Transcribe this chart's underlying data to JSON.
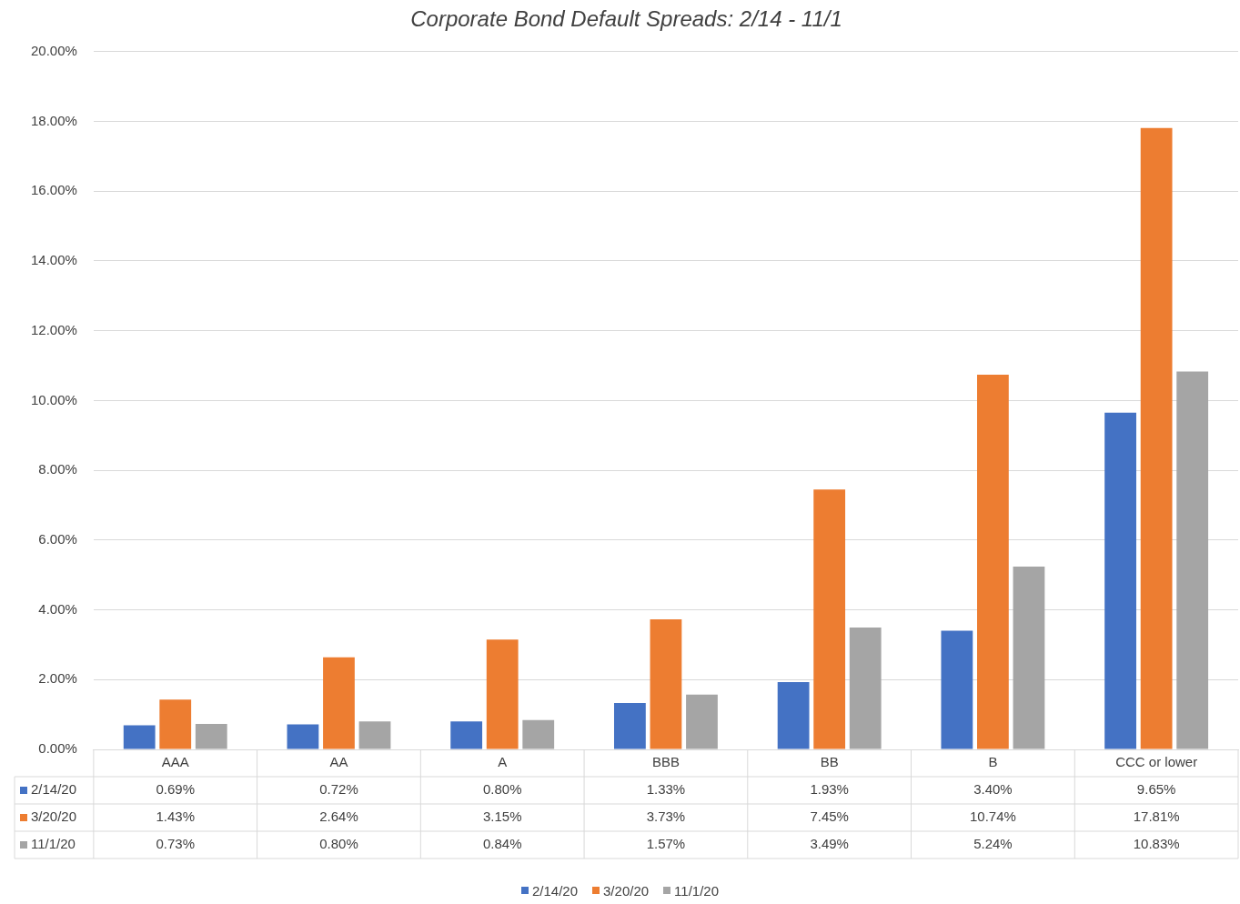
{
  "chart_data": {
    "type": "bar",
    "title": "Corporate Bond Default Spreads: 2/14 - 11/1",
    "categories": [
      "AAA",
      "AA",
      "A",
      "BBB",
      "BB",
      "B",
      "CCC or lower"
    ],
    "series": [
      {
        "name": "2/14/20",
        "color": "#4472c4",
        "values": [
          0.69,
          0.72,
          0.8,
          1.33,
          1.93,
          3.4,
          9.65
        ],
        "value_labels": [
          "0.69%",
          "0.72%",
          "0.80%",
          "1.33%",
          "1.93%",
          "3.40%",
          "9.65%"
        ]
      },
      {
        "name": "3/20/20",
        "color": "#ed7d31",
        "values": [
          1.43,
          2.64,
          3.15,
          3.73,
          7.45,
          10.74,
          17.81
        ],
        "value_labels": [
          "1.43%",
          "2.64%",
          "3.15%",
          "3.73%",
          "7.45%",
          "10.74%",
          "17.81%"
        ]
      },
      {
        "name": "11/1/20",
        "color": "#a5a5a5",
        "values": [
          0.73,
          0.8,
          0.84,
          1.57,
          3.49,
          5.24,
          10.83
        ],
        "value_labels": [
          "0.73%",
          "0.80%",
          "0.84%",
          "1.57%",
          "3.49%",
          "5.24%",
          "10.83%"
        ]
      }
    ],
    "ylim": [
      0,
      20
    ],
    "yticks": [
      {
        "value": 0,
        "label": "0.00%"
      },
      {
        "value": 2,
        "label": "2.00%"
      },
      {
        "value": 4,
        "label": "4.00%"
      },
      {
        "value": 6,
        "label": "6.00%"
      },
      {
        "value": 8,
        "label": "8.00%"
      },
      {
        "value": 10,
        "label": "10.00%"
      },
      {
        "value": 12,
        "label": "12.00%"
      },
      {
        "value": 14,
        "label": "14.00%"
      },
      {
        "value": 16,
        "label": "16.00%"
      },
      {
        "value": 18,
        "label": "18.00%"
      },
      {
        "value": 20,
        "label": "20.00%"
      }
    ],
    "grid": "y",
    "legend": "bottom"
  }
}
